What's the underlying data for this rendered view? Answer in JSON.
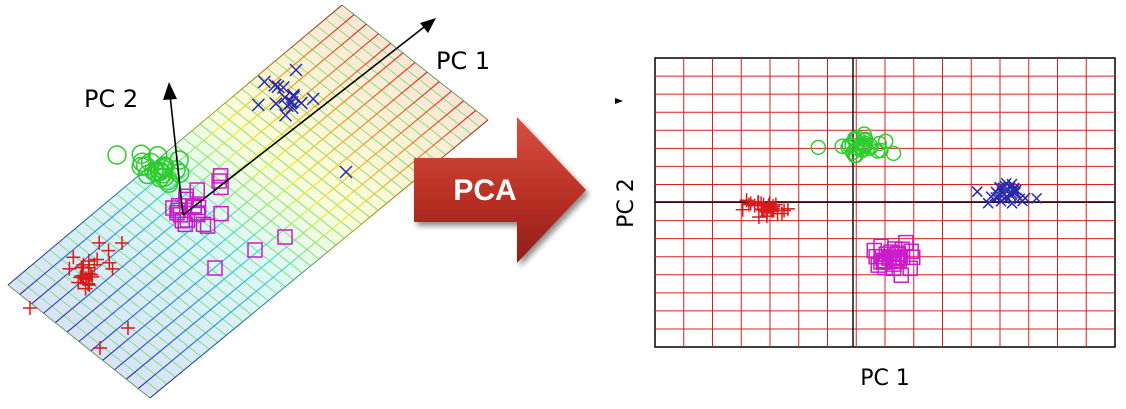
{
  "left_panel": {
    "pc1_label": "PC 1",
    "pc2_label": "PC 2"
  },
  "arrow": {
    "label": "PCA"
  },
  "right_panel": {
    "xlabel": "PC 1",
    "ylabel": "PC 2"
  },
  "colors": {
    "grid": "#d92020",
    "red": "#d91a1a",
    "green": "#2ecc2e",
    "magenta": "#cc1acc",
    "blue": "#2a2aaa",
    "arrow_fill": "#b92f25"
  },
  "clusters": [
    {
      "name": "red",
      "marker": "plus"
    },
    {
      "name": "green",
      "marker": "circle"
    },
    {
      "name": "magenta",
      "marker": "square"
    },
    {
      "name": "blue",
      "marker": "cross"
    }
  ]
}
